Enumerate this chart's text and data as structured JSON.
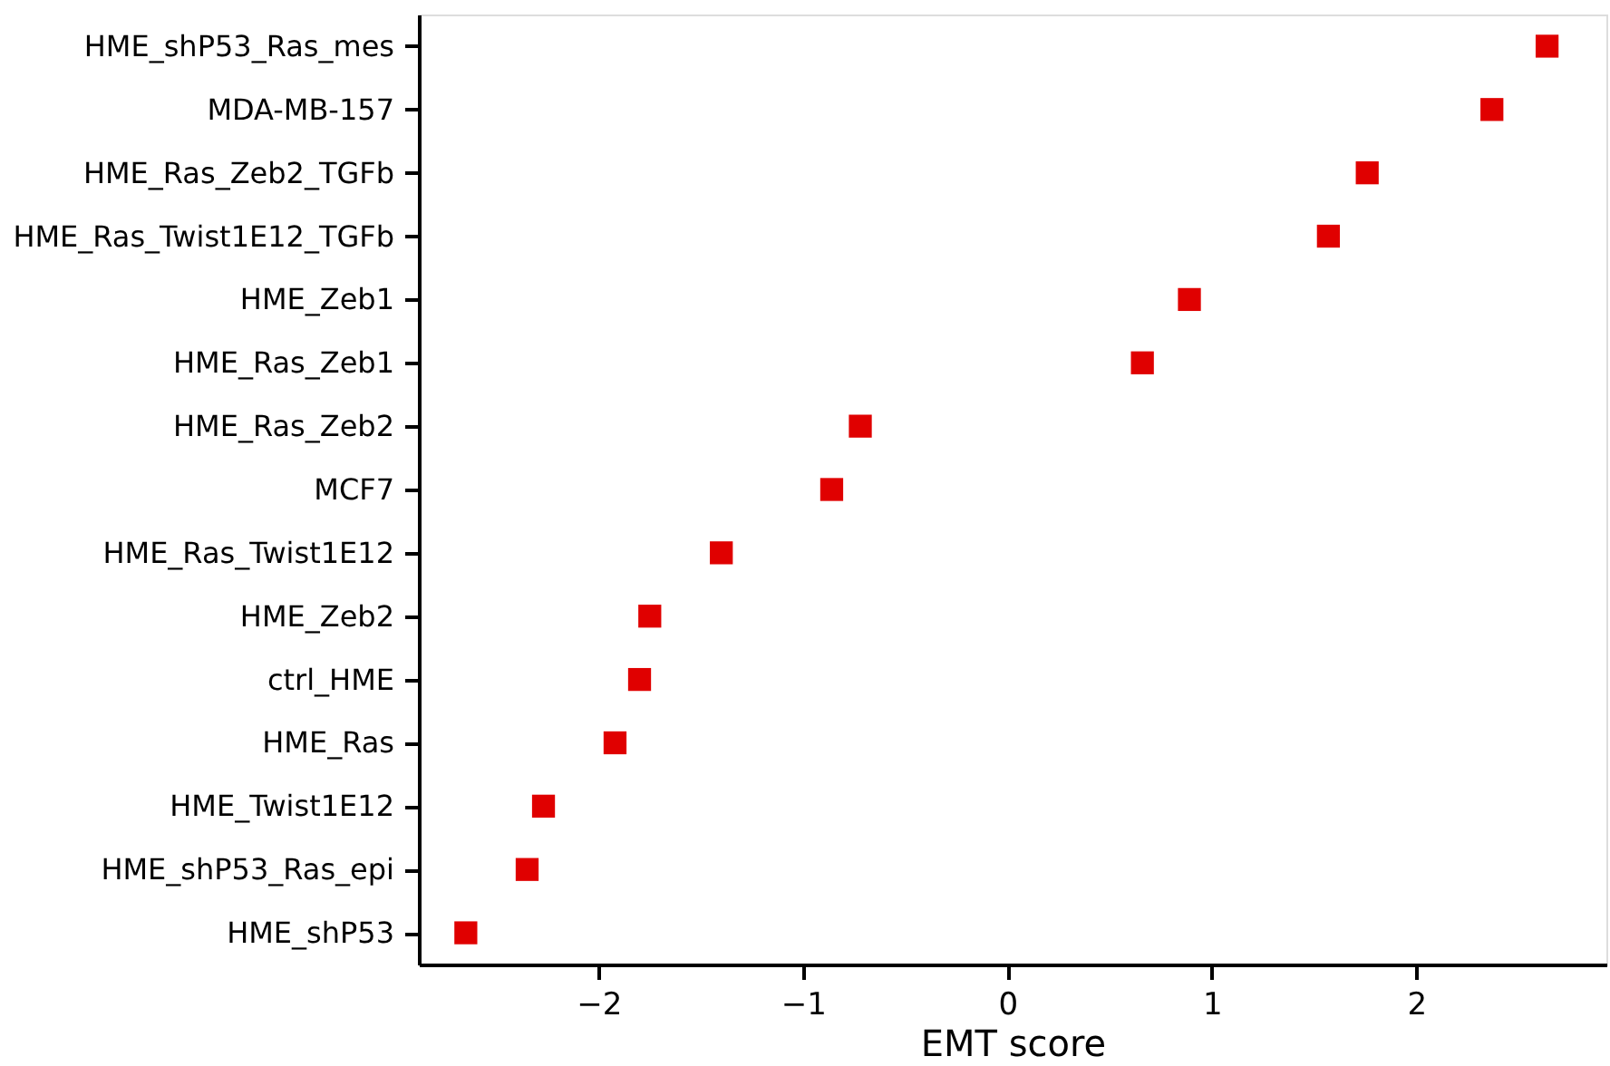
{
  "chart_data": {
    "type": "scatter",
    "xlabel": "EMT score",
    "categories": [
      "HME_shP53_Ras_mes",
      "MDA-MB-157",
      "HME_Ras_Zeb2_TGFb",
      "HME_Ras_Twist1E12_TGFb",
      "HME_Zeb1",
      "HME_Ras_Zeb1",
      "HME_Ras_Zeb2",
      "MCF7",
      "HME_Ras_Twist1E12",
      "HME_Zeb2",
      "ctrl_HME",
      "HME_Ras",
      "HME_Twist1E12",
      "HME_shP53_Ras_epi",
      "HME_shP53"
    ],
    "orientation": "horizontal",
    "series": [
      {
        "color": "#e00000",
        "values": [
          2.64,
          2.37,
          1.76,
          1.57,
          0.89,
          0.66,
          -0.72,
          -0.86,
          -1.4,
          -1.75,
          -1.8,
          -1.92,
          -2.27,
          -2.35,
          -2.65
        ]
      }
    ],
    "xlim": [
      -2.88,
      2.93
    ],
    "xticks": [
      {
        "value": -2,
        "label": "−2"
      },
      {
        "value": -1,
        "label": "−1"
      },
      0,
      1,
      2
    ],
    "grid": false,
    "marker": "square",
    "legend": false
  }
}
